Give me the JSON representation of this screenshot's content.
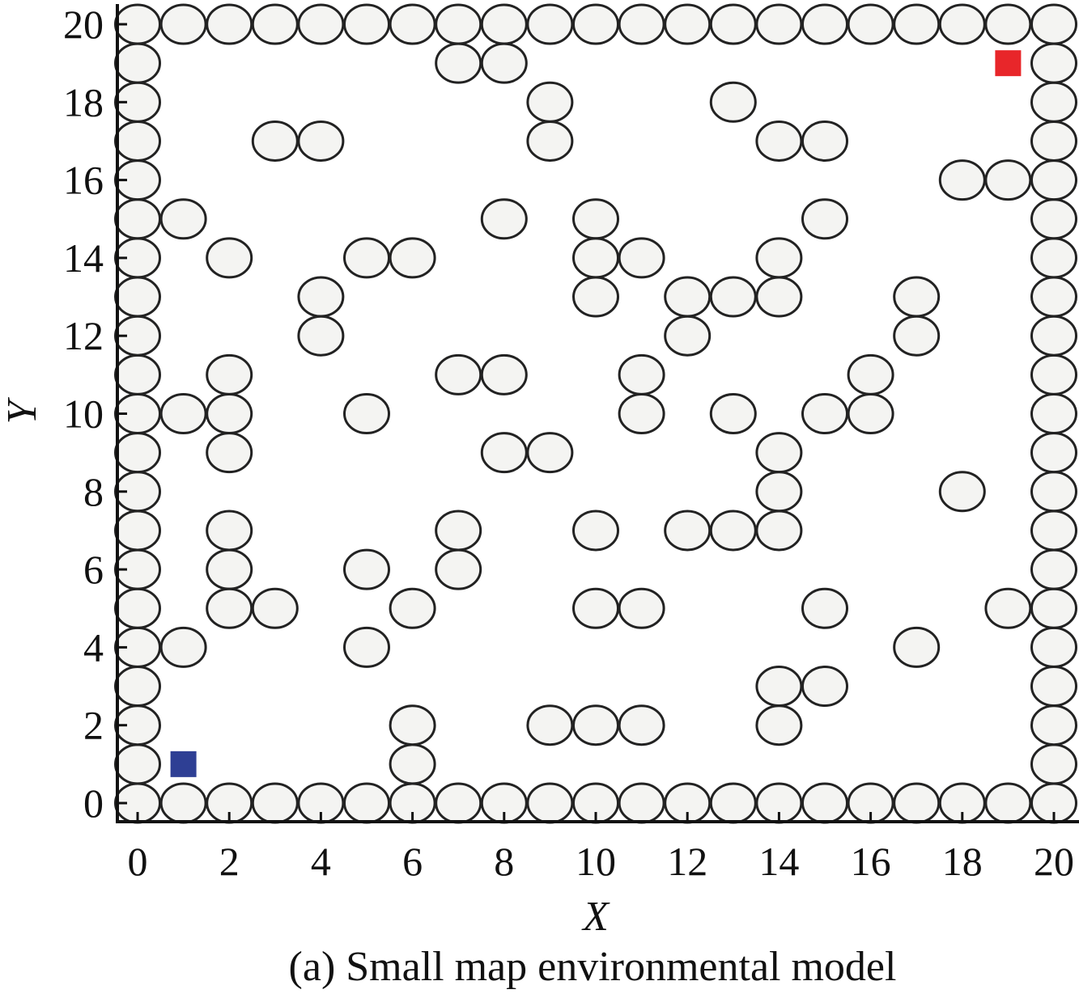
{
  "chart_data": {
    "type": "scatter",
    "title": "",
    "caption": "(a) Small map environmental model",
    "xlabel": "X",
    "ylabel": "Y",
    "xlim": [
      0,
      20
    ],
    "ylim": [
      0,
      20
    ],
    "xticks": [
      "0",
      "2",
      "4",
      "6",
      "8",
      "10",
      "12",
      "14",
      "16",
      "18",
      "20"
    ],
    "yticks": [
      "0",
      "2",
      "4",
      "6",
      "8",
      "10",
      "12",
      "14",
      "16",
      "18",
      "20"
    ],
    "boundary_walls": true,
    "obstacle_color": "#f4f4f2",
    "obstacles": [
      [
        7,
        19
      ],
      [
        8,
        19
      ],
      [
        9,
        18
      ],
      [
        13,
        18
      ],
      [
        3,
        17
      ],
      [
        4,
        17
      ],
      [
        9,
        17
      ],
      [
        14,
        17
      ],
      [
        15,
        17
      ],
      [
        18,
        16
      ],
      [
        19,
        16
      ],
      [
        1,
        15
      ],
      [
        8,
        15
      ],
      [
        10,
        15
      ],
      [
        15,
        15
      ],
      [
        2,
        14
      ],
      [
        5,
        14
      ],
      [
        6,
        14
      ],
      [
        10,
        14
      ],
      [
        11,
        14
      ],
      [
        14,
        14
      ],
      [
        4,
        13
      ],
      [
        10,
        13
      ],
      [
        12,
        13
      ],
      [
        13,
        13
      ],
      [
        14,
        13
      ],
      [
        17,
        13
      ],
      [
        4,
        12
      ],
      [
        12,
        12
      ],
      [
        17,
        12
      ],
      [
        2,
        11
      ],
      [
        7,
        11
      ],
      [
        8,
        11
      ],
      [
        11,
        11
      ],
      [
        16,
        11
      ],
      [
        1,
        10
      ],
      [
        2,
        10
      ],
      [
        5,
        10
      ],
      [
        11,
        10
      ],
      [
        13,
        10
      ],
      [
        15,
        10
      ],
      [
        16,
        10
      ],
      [
        2,
        9
      ],
      [
        8,
        9
      ],
      [
        9,
        9
      ],
      [
        14,
        9
      ],
      [
        14,
        8
      ],
      [
        18,
        8
      ],
      [
        2,
        7
      ],
      [
        7,
        7
      ],
      [
        10,
        7
      ],
      [
        12,
        7
      ],
      [
        13,
        7
      ],
      [
        14,
        7
      ],
      [
        2,
        6
      ],
      [
        5,
        6
      ],
      [
        7,
        6
      ],
      [
        2,
        5
      ],
      [
        3,
        5
      ],
      [
        6,
        5
      ],
      [
        10,
        5
      ],
      [
        11,
        5
      ],
      [
        15,
        5
      ],
      [
        19,
        5
      ],
      [
        1,
        4
      ],
      [
        5,
        4
      ],
      [
        17,
        4
      ],
      [
        14,
        3
      ],
      [
        15,
        3
      ],
      [
        6,
        2
      ],
      [
        9,
        2
      ],
      [
        10,
        2
      ],
      [
        11,
        2
      ],
      [
        14,
        2
      ],
      [
        6,
        1
      ]
    ],
    "start": {
      "x": 1,
      "y": 1,
      "color": "#2e3f94"
    },
    "goal": {
      "x": 19,
      "y": 19,
      "color": "#e8262a"
    }
  }
}
